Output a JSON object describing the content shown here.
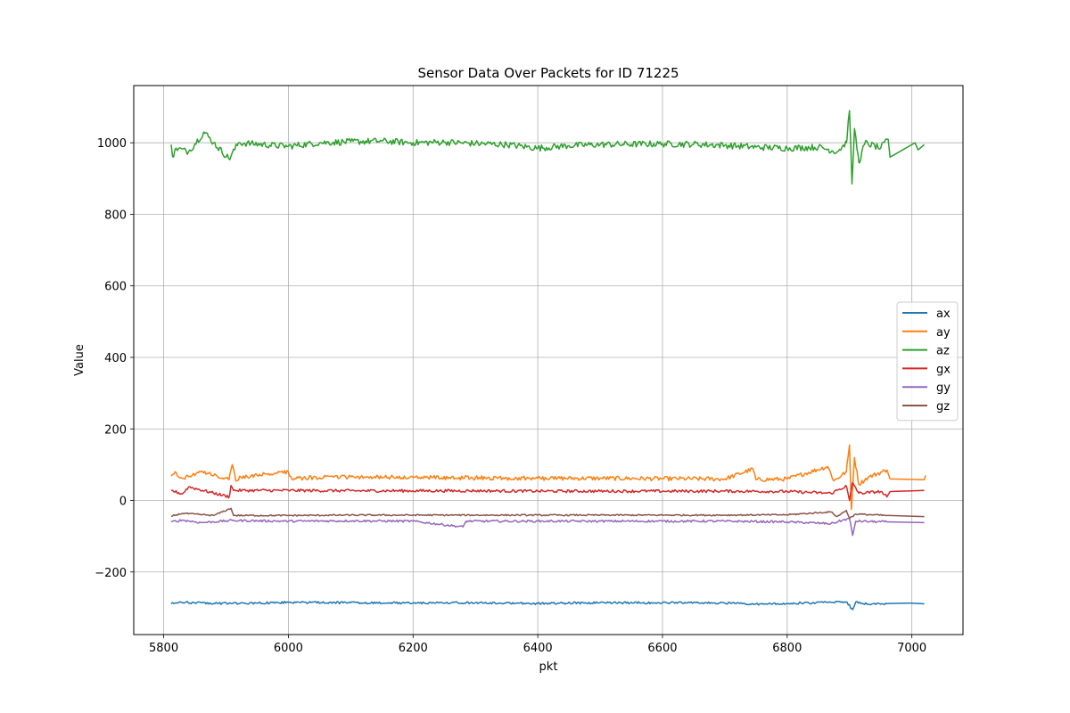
{
  "chart_data": {
    "type": "line",
    "title": "Sensor Data Over Packets for ID 71225",
    "xlabel": "pkt",
    "ylabel": "Value",
    "xlim": [
      5752,
      7082
    ],
    "ylim": [
      -375,
      1160
    ],
    "xticks": [
      5800,
      6000,
      6200,
      6400,
      6600,
      6800,
      7000
    ],
    "yticks": [
      -200,
      0,
      200,
      400,
      600,
      800,
      1000
    ],
    "ytick_labels": [
      "−200",
      "0",
      "200",
      "400",
      "600",
      "800",
      "1000"
    ],
    "grid": true,
    "legend_position": "center right",
    "series": [
      {
        "name": "ax",
        "color": "#1f77b4",
        "base": -287,
        "noise": 3,
        "points": [
          [
            5812,
            -289
          ],
          [
            5830,
            -285
          ],
          [
            5880,
            -288
          ],
          [
            5950,
            -287
          ],
          [
            6000,
            -285
          ],
          [
            6100,
            -286
          ],
          [
            6200,
            -287
          ],
          [
            6300,
            -286
          ],
          [
            6400,
            -288
          ],
          [
            6500,
            -286
          ],
          [
            6600,
            -286
          ],
          [
            6700,
            -287
          ],
          [
            6740,
            -290
          ],
          [
            6800,
            -288
          ],
          [
            6870,
            -285
          ],
          [
            6895,
            -284
          ],
          [
            6905,
            -305
          ],
          [
            6910,
            -284
          ],
          [
            6930,
            -290
          ],
          [
            6965,
            -288
          ],
          [
            7000,
            -287
          ],
          [
            7020,
            -289
          ]
        ]
      },
      {
        "name": "ay",
        "color": "#ff7f0e",
        "base": 64,
        "noise": 6,
        "points": [
          [
            5812,
            68
          ],
          [
            5818,
            80
          ],
          [
            5830,
            62
          ],
          [
            5860,
            80
          ],
          [
            5905,
            58
          ],
          [
            5910,
            100
          ],
          [
            5915,
            60
          ],
          [
            5950,
            70
          ],
          [
            6000,
            80
          ],
          [
            6005,
            62
          ],
          [
            6100,
            66
          ],
          [
            6200,
            64
          ],
          [
            6300,
            63
          ],
          [
            6400,
            62
          ],
          [
            6500,
            62
          ],
          [
            6600,
            61
          ],
          [
            6700,
            60
          ],
          [
            6745,
            88
          ],
          [
            6750,
            58
          ],
          [
            6800,
            60
          ],
          [
            6865,
            95
          ],
          [
            6875,
            55
          ],
          [
            6895,
            80
          ],
          [
            6900,
            155
          ],
          [
            6903,
            -25
          ],
          [
            6908,
            120
          ],
          [
            6915,
            45
          ],
          [
            6930,
            65
          ],
          [
            6960,
            85
          ],
          [
            6965,
            60
          ],
          [
            7020,
            58
          ],
          [
            7022,
            70
          ]
        ]
      },
      {
        "name": "az",
        "color": "#2ca02c",
        "base": 995,
        "noise": 9,
        "points": [
          [
            5812,
            995
          ],
          [
            5815,
            960
          ],
          [
            5820,
            985
          ],
          [
            5840,
            975
          ],
          [
            5865,
            1030
          ],
          [
            5880,
            1000
          ],
          [
            5905,
            955
          ],
          [
            5920,
            1000
          ],
          [
            6000,
            990
          ],
          [
            6050,
            1000
          ],
          [
            6100,
            1003
          ],
          [
            6150,
            1005
          ],
          [
            6200,
            1000
          ],
          [
            6250,
            1002
          ],
          [
            6300,
            998
          ],
          [
            6350,
            995
          ],
          [
            6400,
            985
          ],
          [
            6450,
            992
          ],
          [
            6500,
            995
          ],
          [
            6600,
            997
          ],
          [
            6650,
            996
          ],
          [
            6700,
            993
          ],
          [
            6750,
            988
          ],
          [
            6800,
            985
          ],
          [
            6850,
            988
          ],
          [
            6880,
            975
          ],
          [
            6895,
            1000
          ],
          [
            6900,
            1090
          ],
          [
            6904,
            885
          ],
          [
            6908,
            1040
          ],
          [
            6915,
            945
          ],
          [
            6925,
            1000
          ],
          [
            6950,
            985
          ],
          [
            6962,
            1010
          ],
          [
            6965,
            960
          ],
          [
            7005,
            1000
          ],
          [
            7010,
            980
          ],
          [
            7020,
            995
          ]
        ]
      },
      {
        "name": "gx",
        "color": "#d62728",
        "base": 28,
        "noise": 4,
        "points": [
          [
            5812,
            28
          ],
          [
            5830,
            18
          ],
          [
            5840,
            38
          ],
          [
            5905,
            10
          ],
          [
            5908,
            42
          ],
          [
            5912,
            28
          ],
          [
            6000,
            28
          ],
          [
            6100,
            27
          ],
          [
            6200,
            27
          ],
          [
            6300,
            27
          ],
          [
            6400,
            26
          ],
          [
            6500,
            26
          ],
          [
            6600,
            26
          ],
          [
            6700,
            26
          ],
          [
            6800,
            25
          ],
          [
            6870,
            20
          ],
          [
            6895,
            40
          ],
          [
            6900,
            0
          ],
          [
            6905,
            50
          ],
          [
            6915,
            20
          ],
          [
            6950,
            25
          ],
          [
            6960,
            10
          ],
          [
            6965,
            25
          ],
          [
            7020,
            28
          ]
        ]
      },
      {
        "name": "gy",
        "color": "#9467bd",
        "base": -58,
        "noise": 3,
        "points": [
          [
            5812,
            -60
          ],
          [
            5830,
            -55
          ],
          [
            5860,
            -62
          ],
          [
            5910,
            -56
          ],
          [
            6000,
            -58
          ],
          [
            6100,
            -57
          ],
          [
            6200,
            -58
          ],
          [
            6280,
            -74
          ],
          [
            6285,
            -58
          ],
          [
            6400,
            -58
          ],
          [
            6500,
            -58
          ],
          [
            6600,
            -58
          ],
          [
            6700,
            -58
          ],
          [
            6800,
            -60
          ],
          [
            6870,
            -65
          ],
          [
            6900,
            -50
          ],
          [
            6905,
            -98
          ],
          [
            6910,
            -58
          ],
          [
            6960,
            -60
          ],
          [
            7020,
            -62
          ]
        ]
      },
      {
        "name": "gz",
        "color": "#8c564b",
        "base": -42,
        "noise": 2,
        "points": [
          [
            5812,
            -44
          ],
          [
            5830,
            -36
          ],
          [
            5880,
            -42
          ],
          [
            5908,
            -22
          ],
          [
            5912,
            -42
          ],
          [
            6000,
            -42
          ],
          [
            6100,
            -41
          ],
          [
            6200,
            -41
          ],
          [
            6300,
            -41
          ],
          [
            6400,
            -41
          ],
          [
            6500,
            -41
          ],
          [
            6600,
            -41
          ],
          [
            6700,
            -41
          ],
          [
            6800,
            -40
          ],
          [
            6870,
            -32
          ],
          [
            6880,
            -45
          ],
          [
            6895,
            -28
          ],
          [
            6900,
            -50
          ],
          [
            6910,
            -38
          ],
          [
            6960,
            -42
          ],
          [
            7020,
            -45
          ]
        ]
      }
    ]
  }
}
